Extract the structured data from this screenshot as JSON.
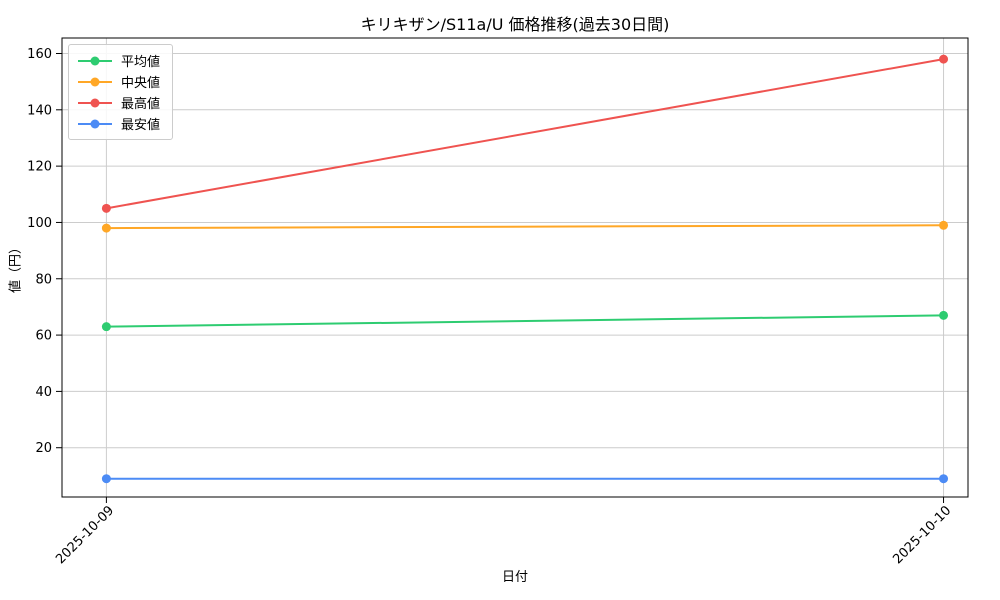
{
  "chart_data": {
    "type": "line",
    "title": "キリキザン/S11a/U 価格推移(過去30日間)",
    "xlabel": "日付",
    "ylabel": "値（円）",
    "categories": [
      "2025-10-09",
      "2025-10-10"
    ],
    "series": [
      {
        "name": "平均値",
        "color": "#2ECC71",
        "values": [
          63,
          67
        ]
      },
      {
        "name": "中央値",
        "color": "#FFA726",
        "values": [
          98,
          99
        ]
      },
      {
        "name": "最高値",
        "color": "#EF5350",
        "values": [
          105,
          158
        ]
      },
      {
        "name": "最安値",
        "color": "#4C8BF5",
        "values": [
          9,
          9
        ]
      }
    ],
    "yticks": [
      20,
      40,
      60,
      80,
      100,
      120,
      140,
      160
    ],
    "ylim": [
      2.5,
      165.5
    ],
    "grid": true,
    "legend_position": "upper-left",
    "colors": {
      "grid": "#cccccc",
      "spine": "#000000",
      "background": "#ffffff"
    }
  }
}
